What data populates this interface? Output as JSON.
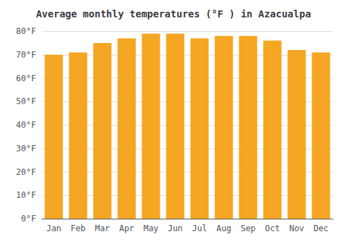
{
  "chart_data": {
    "type": "bar",
    "title": "Average monthly temperatures (°F ) in Azacualpa",
    "categories": [
      "Jan",
      "Feb",
      "Mar",
      "Apr",
      "May",
      "Jun",
      "Jul",
      "Aug",
      "Sep",
      "Oct",
      "Nov",
      "Dec"
    ],
    "values": [
      70,
      71,
      75,
      77,
      79,
      79,
      77,
      78,
      78,
      76,
      72,
      71
    ],
    "color": "#F5A623",
    "ylim": [
      0,
      80
    ],
    "yticks": [
      {
        "value": 0,
        "label": "0°F"
      },
      {
        "value": 10,
        "label": "10°F"
      },
      {
        "value": 20,
        "label": "20°F"
      },
      {
        "value": 30,
        "label": "30°F"
      },
      {
        "value": 40,
        "label": "40°F"
      },
      {
        "value": 50,
        "label": "50°F"
      },
      {
        "value": 60,
        "label": "60°F"
      },
      {
        "value": 70,
        "label": "70°F"
      },
      {
        "value": 80,
        "label": "80°F"
      }
    ],
    "grid": true
  }
}
